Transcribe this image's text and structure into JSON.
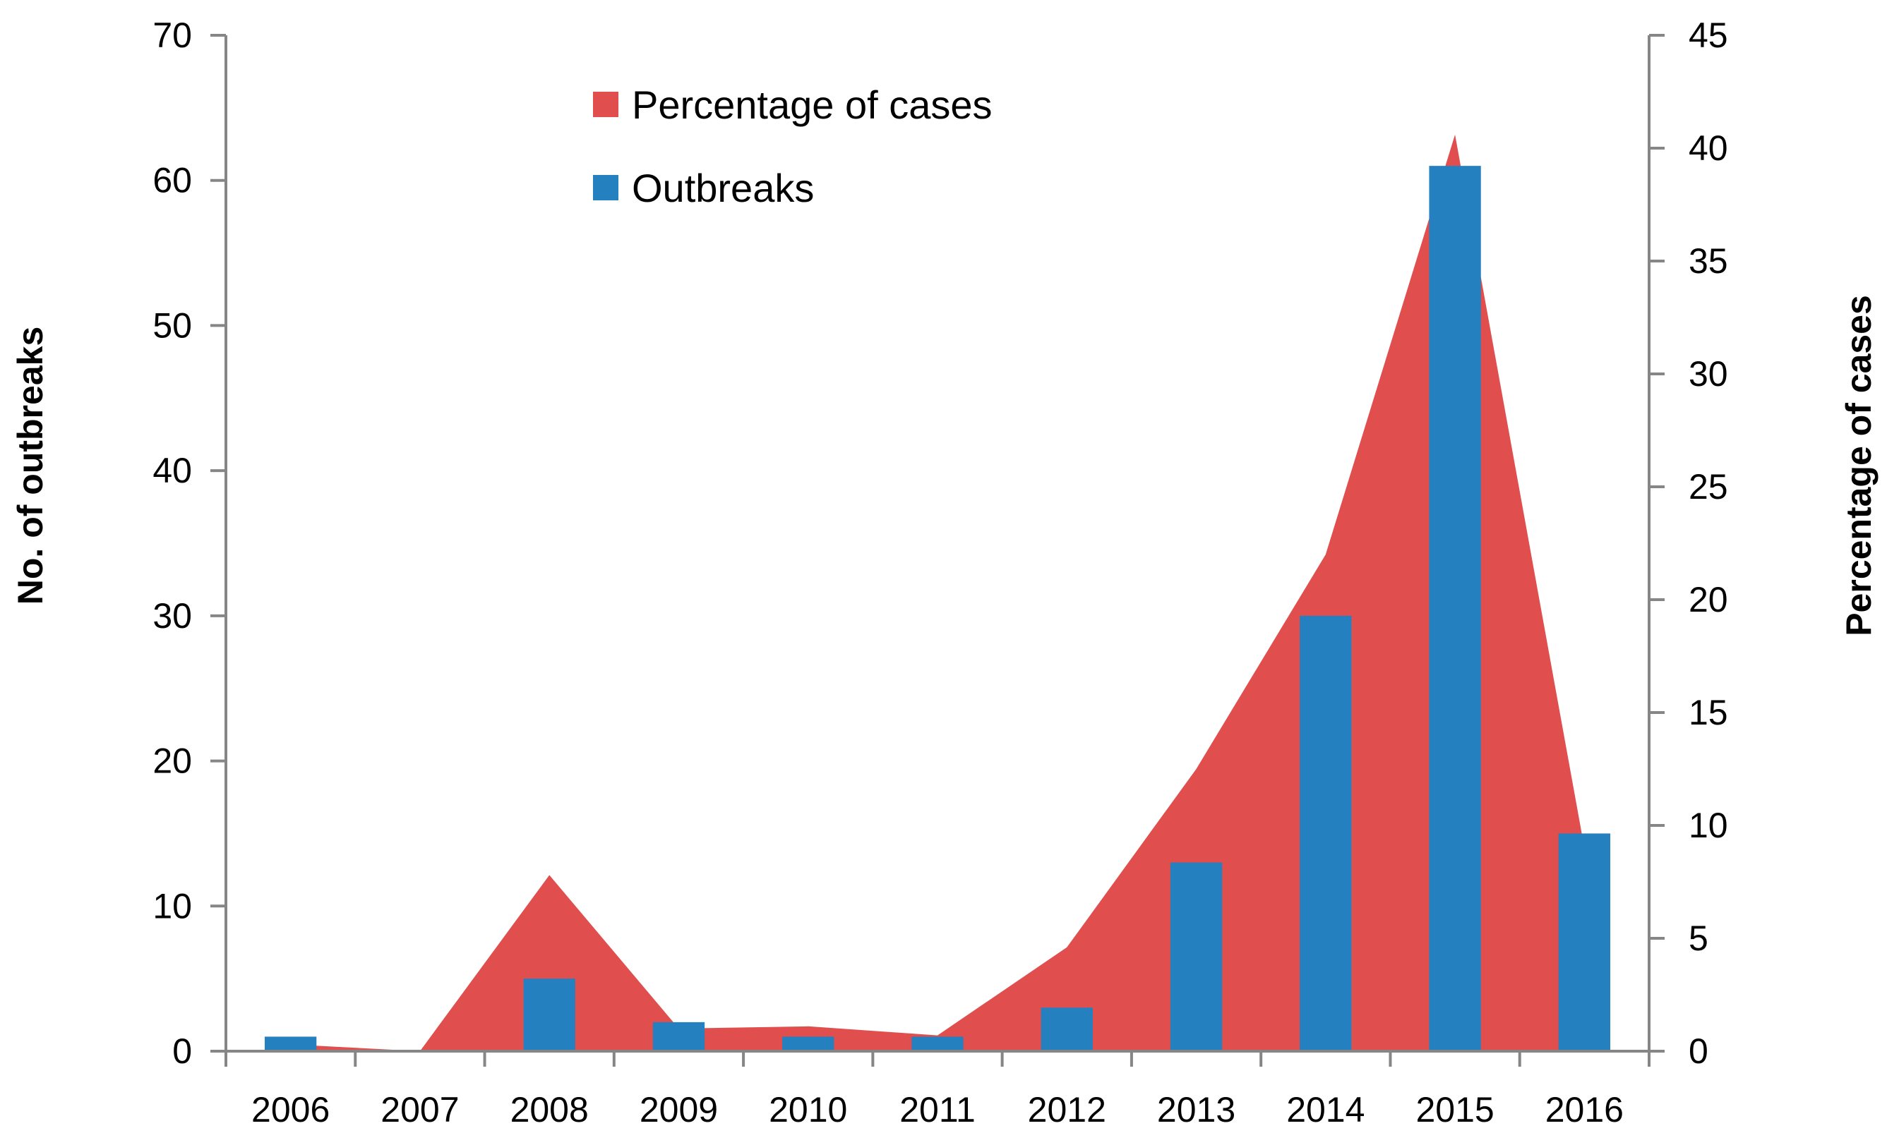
{
  "chart_data": {
    "type": "bar+area",
    "categories": [
      "2006",
      "2007",
      "2008",
      "2009",
      "2010",
      "2011",
      "2012",
      "2013",
      "2014",
      "2015",
      "2016"
    ],
    "series": [
      {
        "name": "Outbreaks",
        "type": "bar",
        "axis": "left",
        "color": "#2580C0",
        "values": [
          1,
          0,
          5,
          2,
          1,
          1,
          3,
          13,
          30,
          61,
          15
        ]
      },
      {
        "name": "Percentage of cases",
        "type": "area",
        "axis": "right",
        "color": "#E04E4E",
        "values": [
          0.3,
          0.0,
          7.8,
          1.0,
          1.1,
          0.7,
          4.6,
          12.5,
          22.0,
          40.6,
          9.0
        ]
      }
    ],
    "y_left": {
      "label": "No. of outbreaks",
      "lim": [
        0,
        70
      ],
      "ticks": [
        "0",
        "10",
        "20",
        "30",
        "40",
        "50",
        "60",
        "70"
      ]
    },
    "y_right": {
      "label": "Percentage of cases",
      "lim": [
        0,
        45
      ],
      "ticks": [
        "0",
        "5",
        "10",
        "15",
        "20",
        "25",
        "30",
        "35",
        "40",
        "45"
      ]
    },
    "legend": {
      "position": "top-center",
      "items": [
        "Percentage of cases",
        "Outbreaks"
      ]
    },
    "grid": false
  }
}
